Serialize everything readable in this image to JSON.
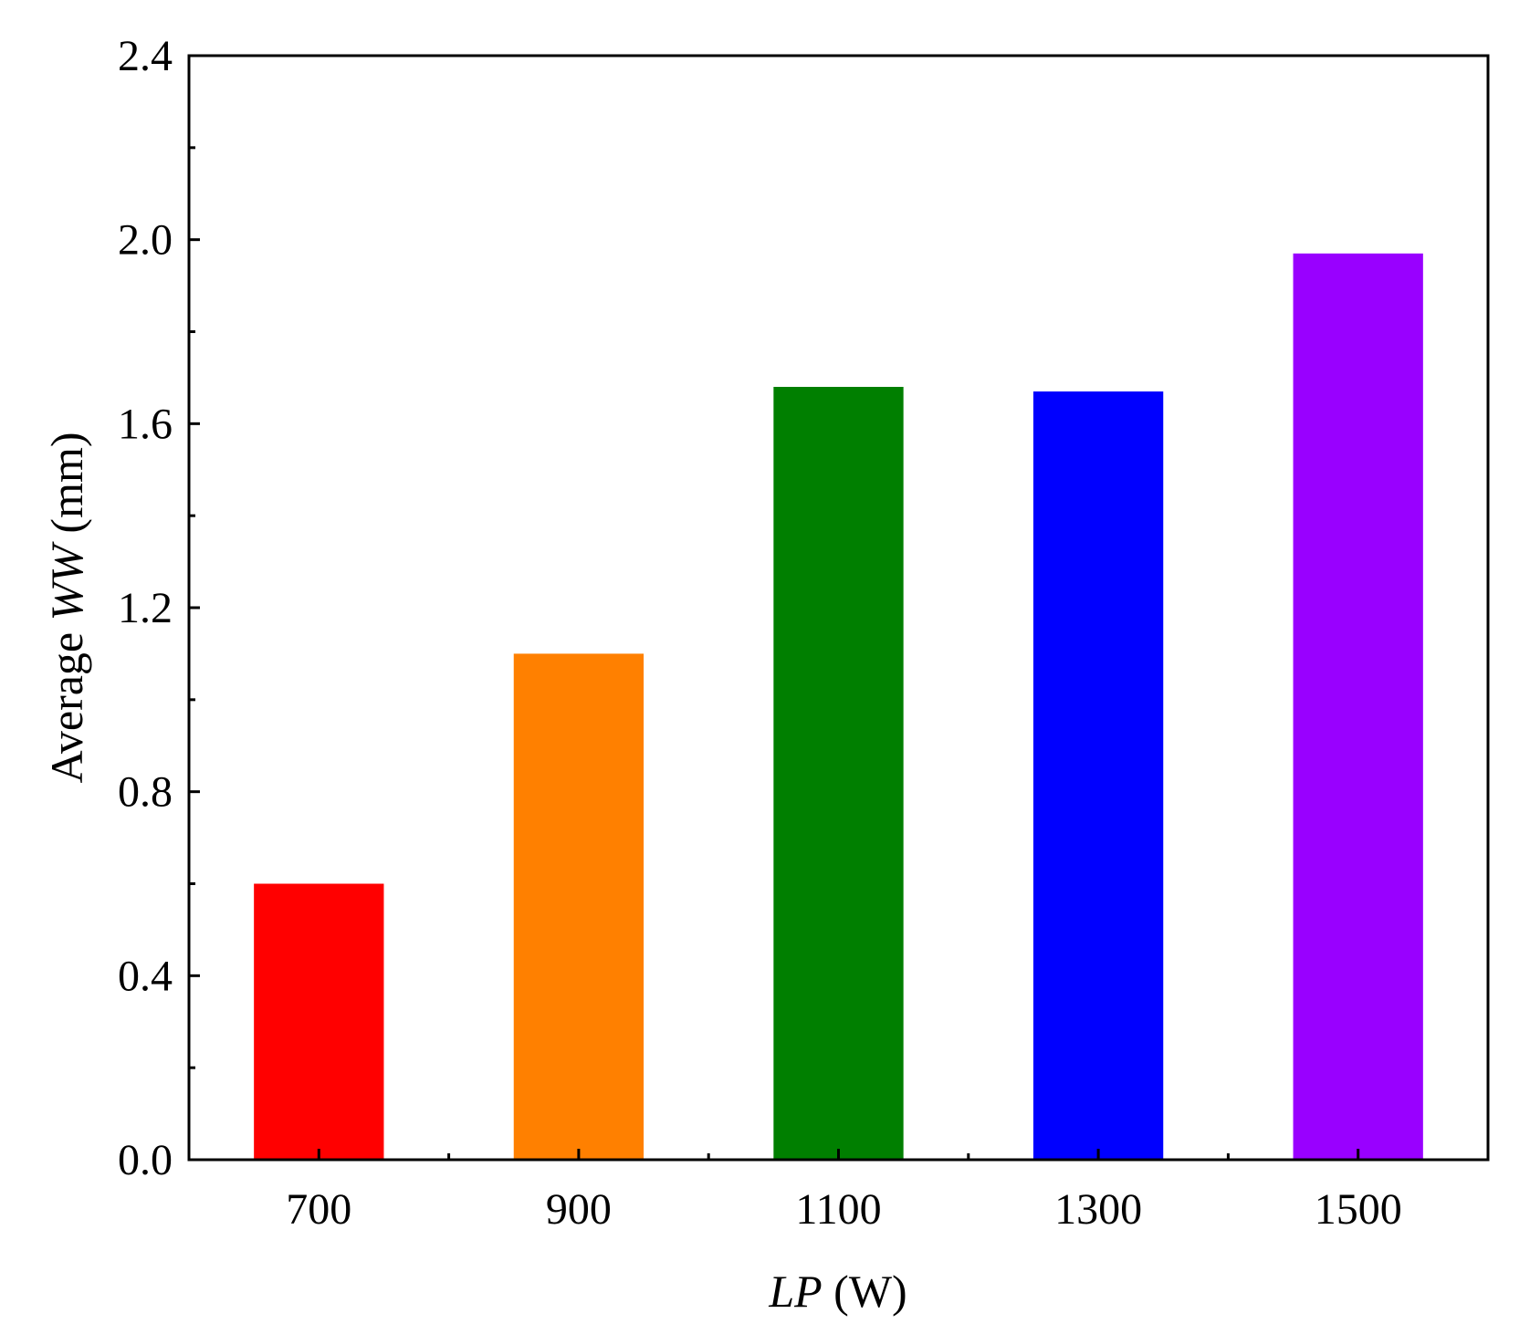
{
  "chart_data": {
    "type": "bar",
    "categories": [
      "700",
      "900",
      "1100",
      "1300",
      "1500"
    ],
    "values": [
      0.6,
      1.1,
      1.68,
      1.67,
      1.97
    ],
    "colors": [
      "#ff0000",
      "#ff8000",
      "#007f00",
      "#0000ff",
      "#9900ff"
    ],
    "xlabel": {
      "italic": "LP",
      "rest": " (W)"
    },
    "ylabel": {
      "prefix": "Average ",
      "italic": "WW",
      "suffix": " (mm)"
    },
    "ylim": [
      0,
      2.4
    ],
    "yticks": [
      "0.0",
      "0.4",
      "0.8",
      "1.2",
      "1.6",
      "2.0",
      "2.4"
    ],
    "grid": false,
    "legend": "none"
  }
}
